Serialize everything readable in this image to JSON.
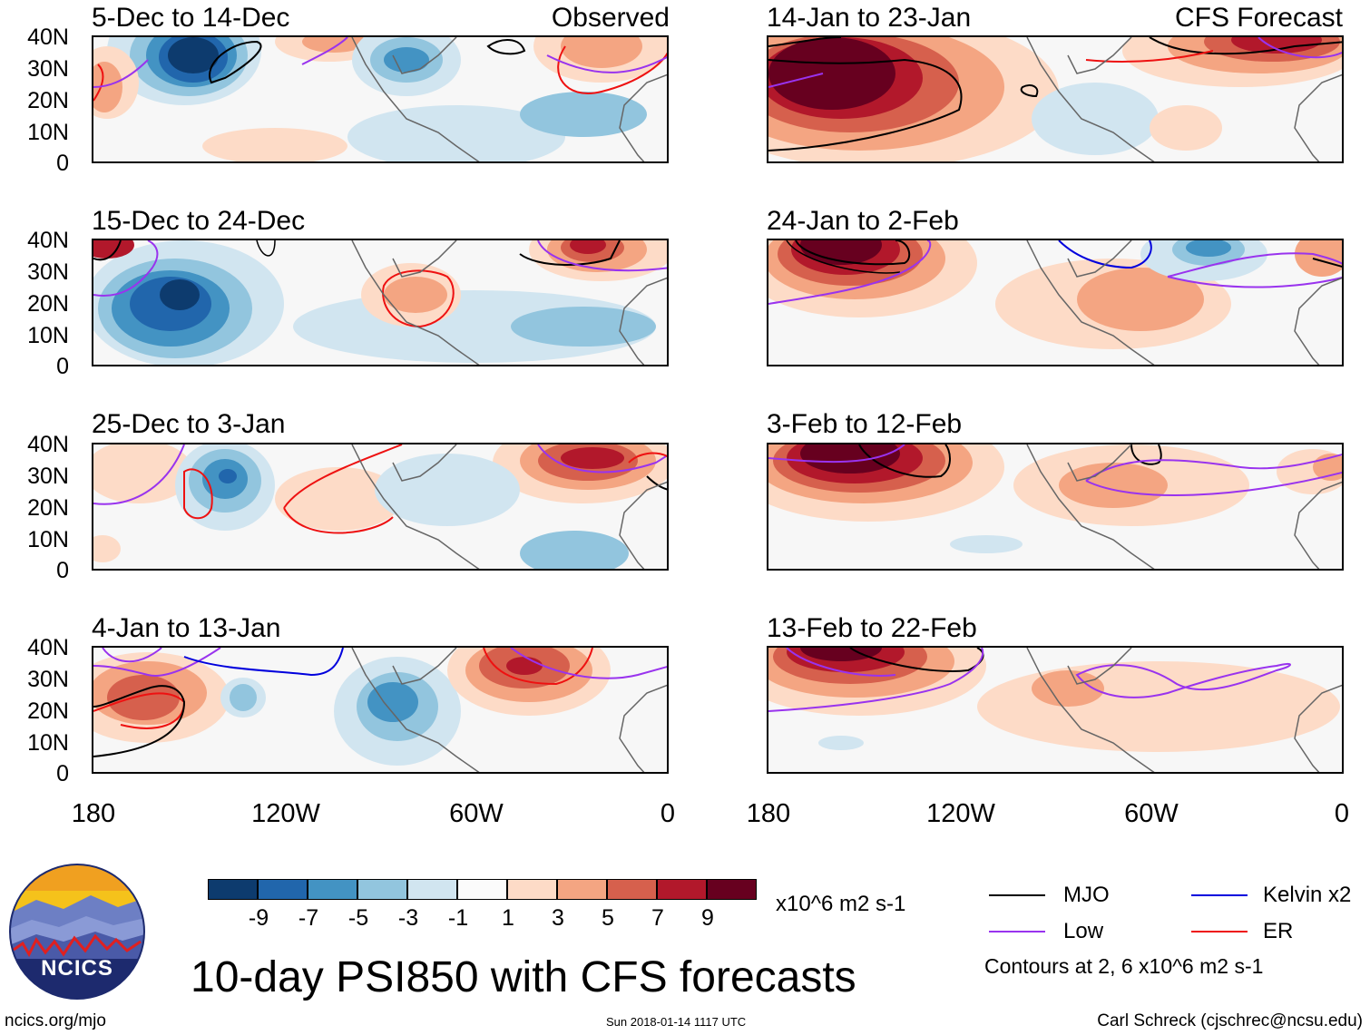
{
  "panels": {
    "p1_title": "5-Dec to 14-Dec",
    "p1_tag": "Observed",
    "p2_title": "15-Dec to 24-Dec",
    "p3_title": "25-Dec to 3-Jan",
    "p4_title": "4-Jan to 13-Jan",
    "p5_title": "14-Jan to 23-Jan",
    "p5_tag": "CFS Forecast",
    "p6_title": "24-Jan to 2-Feb",
    "p7_title": "3-Feb to 12-Feb",
    "p8_title": "13-Feb to 22-Feb"
  },
  "axes": {
    "lat_labels": [
      "40N",
      "30N",
      "20N",
      "10N",
      "0"
    ],
    "lon_labels": [
      "180",
      "120W",
      "60W",
      "0"
    ]
  },
  "colorbar": {
    "labels": [
      "-9",
      "-7",
      "-5",
      "-3",
      "-1",
      "1",
      "3",
      "5",
      "7",
      "9"
    ],
    "units": "x10^6 m2 s-1",
    "colors": [
      "#0d3b6e",
      "#2166ac",
      "#4393c3",
      "#92c5de",
      "#d1e5f0",
      "#fbfbfb",
      "#fddbc7",
      "#f4a582",
      "#d6604d",
      "#b2182b",
      "#67001f"
    ]
  },
  "legend": {
    "mjo": "MJO",
    "kelvin": "Kelvin x2",
    "low": "Low",
    "er": "ER",
    "contours_note": "Contours at 2, 6 x10^6 m2 s-1",
    "colors": {
      "mjo": "#000000",
      "kelvin": "#0000dd",
      "low": "#9933ee",
      "er": "#ee1111"
    }
  },
  "logo": {
    "text": "NCICS"
  },
  "title": "10-day PSI850 with CFS forecasts",
  "footer": {
    "url": "ncics.org/mjo",
    "timestamp": "Sun 2018-01-14 1117 UTC",
    "credit": "Carl Schreck (cjschrec@ncsu.edu)"
  }
}
